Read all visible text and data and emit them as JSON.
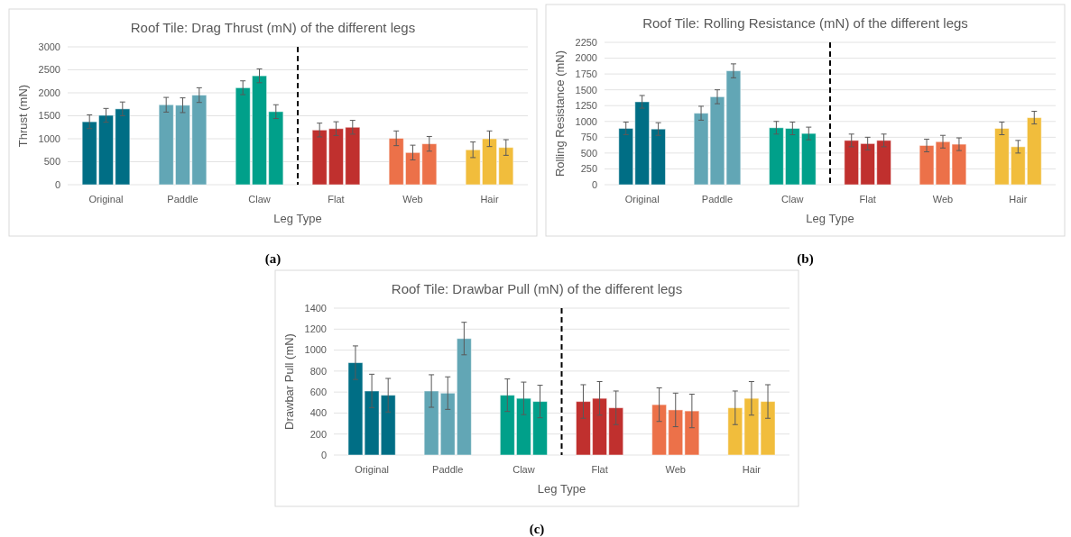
{
  "chart_data": [
    {
      "type": "bar",
      "title": "Roof Tile: Drag Thrust (mN) of the different legs",
      "xlabel": "Leg Type",
      "ylabel": "Thrust  (mN)",
      "categories": [
        "Original",
        "Paddle",
        "Claw",
        "Flat",
        "Web",
        "Hair"
      ],
      "series": [
        {
          "colors": [
            "#006e85",
            "#62a6b5",
            "#00a08a",
            "#c0302e",
            "#ec7149",
            "#f1bd3c"
          ],
          "values": [
            1370,
            1740,
            2110,
            1190,
            1010,
            760
          ],
          "errors": [
            150,
            160,
            150,
            150,
            160,
            170
          ]
        },
        {
          "colors": [
            "#006e85",
            "#62a6b5",
            "#00a08a",
            "#c0302e",
            "#ec7149",
            "#f1bd3c"
          ],
          "values": [
            1510,
            1730,
            2370,
            1220,
            700,
            1000
          ],
          "errors": [
            150,
            160,
            150,
            150,
            160,
            170
          ]
        },
        {
          "colors": [
            "#006e85",
            "#62a6b5",
            "#00a08a",
            "#c0302e",
            "#ec7149",
            "#f1bd3c"
          ],
          "values": [
            1650,
            1950,
            1590,
            1250,
            890,
            810
          ],
          "errors": [
            150,
            160,
            150,
            150,
            160,
            170
          ]
        }
      ],
      "ylim": [
        0,
        3000
      ],
      "yticks": [
        0,
        500,
        1000,
        1500,
        2000,
        2500,
        3000
      ],
      "grid": "y",
      "annotations": [
        "(a)"
      ]
    },
    {
      "type": "bar",
      "title": "Roof Tile: Rolling Resistance (mN) of the different legs",
      "xlabel": "Leg Type",
      "ylabel": "Rolling Resistance (mN)",
      "categories": [
        "Original",
        "Paddle",
        "Claw",
        "Flat",
        "Web",
        "Hair"
      ],
      "series": [
        {
          "colors": [
            "#006e85",
            "#62a6b5",
            "#00a08a",
            "#c0302e",
            "#ec7149",
            "#f1bd3c"
          ],
          "values": [
            890,
            1130,
            900,
            700,
            620,
            890
          ],
          "errors": [
            100,
            110,
            100,
            100,
            100,
            100
          ]
        },
        {
          "colors": [
            "#006e85",
            "#62a6b5",
            "#00a08a",
            "#c0302e",
            "#ec7149",
            "#f1bd3c"
          ],
          "values": [
            1310,
            1390,
            890,
            650,
            680,
            600
          ],
          "errors": [
            100,
            110,
            100,
            100,
            100,
            100
          ]
        },
        {
          "colors": [
            "#006e85",
            "#62a6b5",
            "#00a08a",
            "#c0302e",
            "#ec7149",
            "#f1bd3c"
          ],
          "values": [
            880,
            1800,
            810,
            700,
            640,
            1060
          ],
          "errors": [
            100,
            110,
            100,
            100,
            100,
            100
          ]
        }
      ],
      "ylim": [
        0,
        2250
      ],
      "yticks": [
        0,
        250,
        500,
        750,
        1000,
        1250,
        1500,
        1750,
        2000,
        2250
      ],
      "grid": "y",
      "annotations": [
        "(b)"
      ]
    },
    {
      "type": "bar",
      "title": "Roof Tile: Drawbar Pull (mN) of the different legs",
      "xlabel": "Leg Type",
      "ylabel": "Drawbar Pull (mN)",
      "categories": [
        "Original",
        "Paddle",
        "Claw",
        "Flat",
        "Web",
        "Hair"
      ],
      "series": [
        {
          "colors": [
            "#006e85",
            "#62a6b5",
            "#00a08a",
            "#c0302e",
            "#ec7149",
            "#f1bd3c"
          ],
          "values": [
            880,
            610,
            570,
            510,
            480,
            450
          ],
          "errors": [
            160,
            155,
            155,
            160,
            160,
            160
          ]
        },
        {
          "colors": [
            "#006e85",
            "#62a6b5",
            "#00a08a",
            "#c0302e",
            "#ec7149",
            "#f1bd3c"
          ],
          "values": [
            610,
            590,
            540,
            540,
            430,
            540
          ],
          "errors": [
            160,
            155,
            155,
            160,
            160,
            160
          ]
        },
        {
          "colors": [
            "#006e85",
            "#62a6b5",
            "#00a08a",
            "#c0302e",
            "#ec7149",
            "#f1bd3c"
          ],
          "values": [
            570,
            1110,
            510,
            450,
            420,
            510
          ],
          "errors": [
            160,
            155,
            155,
            160,
            160,
            160
          ]
        }
      ],
      "ylim": [
        0,
        1400
      ],
      "yticks": [
        0,
        200,
        400,
        600,
        800,
        1000,
        1200,
        1400
      ],
      "grid": "y",
      "annotations": [
        "(c)"
      ]
    }
  ]
}
